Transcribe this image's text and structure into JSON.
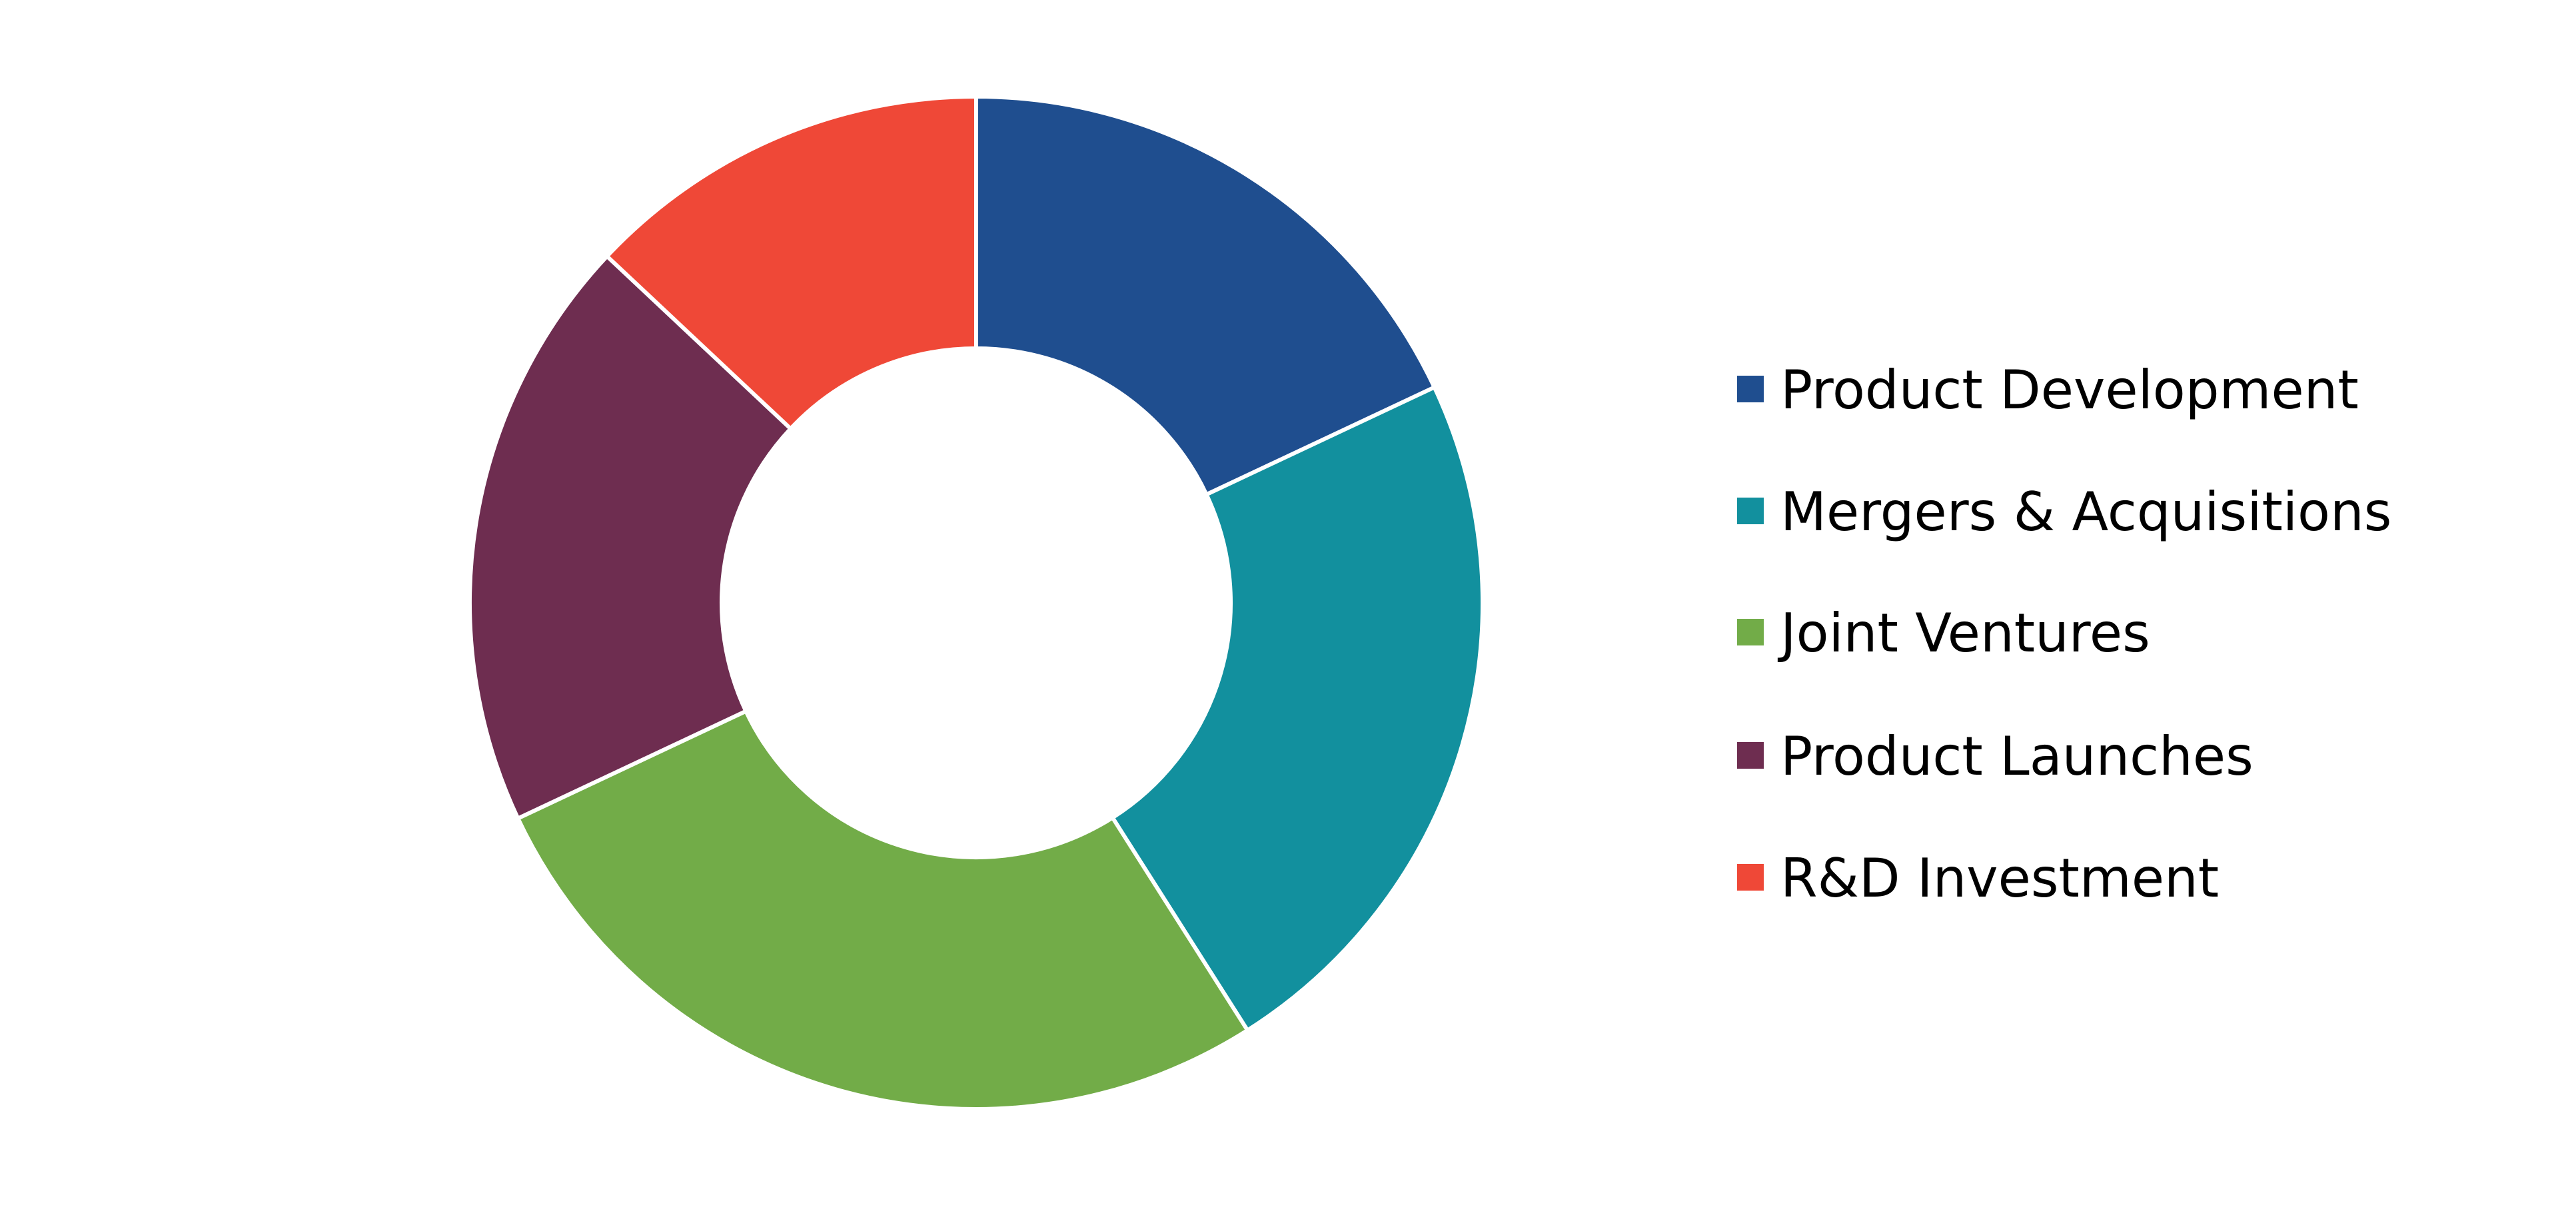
{
  "chart_data": {
    "type": "pie",
    "variant": "donut",
    "categories": [
      "Product Development",
      "Mergers & Acquisitions",
      "Joint Ventures",
      "Product Launches",
      "R&D Investment"
    ],
    "values": [
      18,
      23,
      27,
      19,
      13
    ],
    "colors": [
      "#1f4e8f",
      "#12909e",
      "#72ac48",
      "#6e2d50",
      "#ef4837"
    ],
    "legend_position": "right",
    "start_angle": "top, clockwise"
  }
}
